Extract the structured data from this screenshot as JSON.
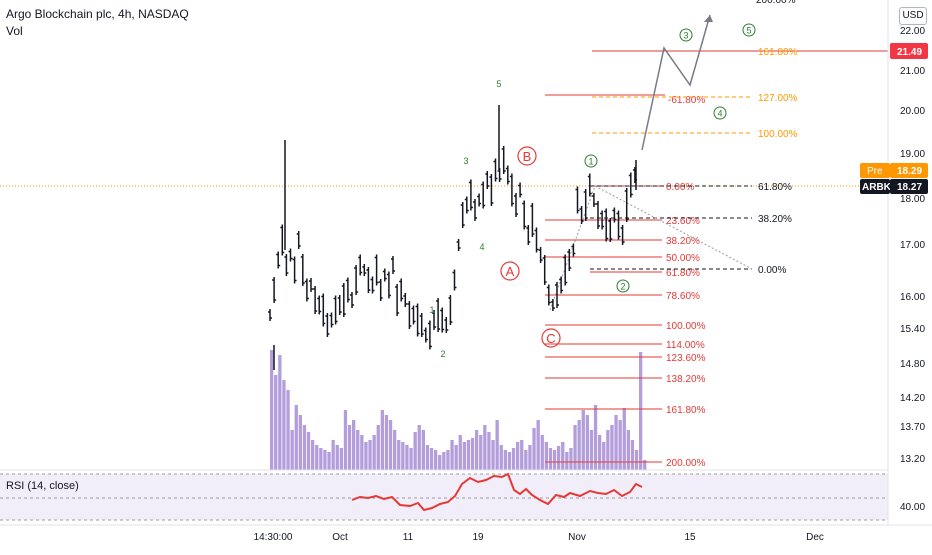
{
  "header": {
    "title": "Argo Blockchain plc, 4h, NASDAQ",
    "volume_label": "Vol"
  },
  "currency_button": "USD",
  "price_axis": {
    "ticks": [
      "22.00",
      "21.00",
      "20.00",
      "19.00",
      "18.00",
      "17.00",
      "16.00",
      "15.40",
      "14.80",
      "14.20",
      "13.70",
      "13.20"
    ],
    "partial_top_label": "200.00%",
    "alert_price": "21.49",
    "pre_label": "Pre",
    "pre_price": "18.29",
    "ticker_label": "ARBK",
    "last_price": "18.27"
  },
  "time_axis": {
    "ticks": [
      "14:30:00",
      "Oct",
      "11",
      "19",
      "Nov",
      "15",
      "Dec"
    ]
  },
  "rsi": {
    "label": "RSI (14, close)",
    "axis_tick": "40.00"
  },
  "colors": {
    "bars": "#131722",
    "volume": "#b39ddb",
    "fib_red": "#e53935",
    "fib_orange": "#ff9800",
    "wave_green": "#2e7d32",
    "wave_red": "#e53935",
    "projection": "#787b86",
    "rsi_line": "#e53935",
    "rsi_band": "#ede7f6",
    "alert_badge": "#f23645",
    "pre_badge": "#ff9800",
    "ticker_badge": "#131722"
  },
  "chart_data": {
    "type": "ohlc",
    "title": "Argo Blockchain plc, 4h, NASDAQ",
    "price_scale": "log",
    "y_ticks": [
      22.0,
      21.0,
      20.0,
      19.0,
      18.0,
      17.0,
      16.0,
      15.4,
      14.8,
      14.2,
      13.7,
      13.2
    ],
    "x_ticks": [
      "14:30:00",
      "Oct",
      "11",
      "19",
      "Nov",
      "15",
      "Dec"
    ],
    "current_price": 18.27,
    "premarket_price": 18.29,
    "alert_level": 21.49,
    "fib_extension_red_1": [
      "0.00%",
      "23.60%",
      "38.20%",
      "50.00%",
      "61.80%",
      "78.60%",
      "100.00%",
      "114.00%",
      "123.60%",
      "138.20%",
      "161.80%",
      "200.00%"
    ],
    "fib_extension_red_2": [
      "161.80%",
      "-61.80%"
    ],
    "fib_extension_orange": [
      "127.00%",
      "100.00%"
    ],
    "fib_retracement_gray": [
      "61.80%",
      "38.20%",
      "0.00%"
    ],
    "waves": {
      "impulse_green": [
        "1",
        "2",
        "3",
        "4",
        "5"
      ],
      "corrective_red": [
        "A",
        "B",
        "C"
      ],
      "current_count": [
        "1",
        "2",
        "3",
        "4",
        "5"
      ]
    },
    "rsi": {
      "name": "RSI (14, close)",
      "axis_tick": 40.0
    },
    "grid": false,
    "legend": "top-left"
  }
}
